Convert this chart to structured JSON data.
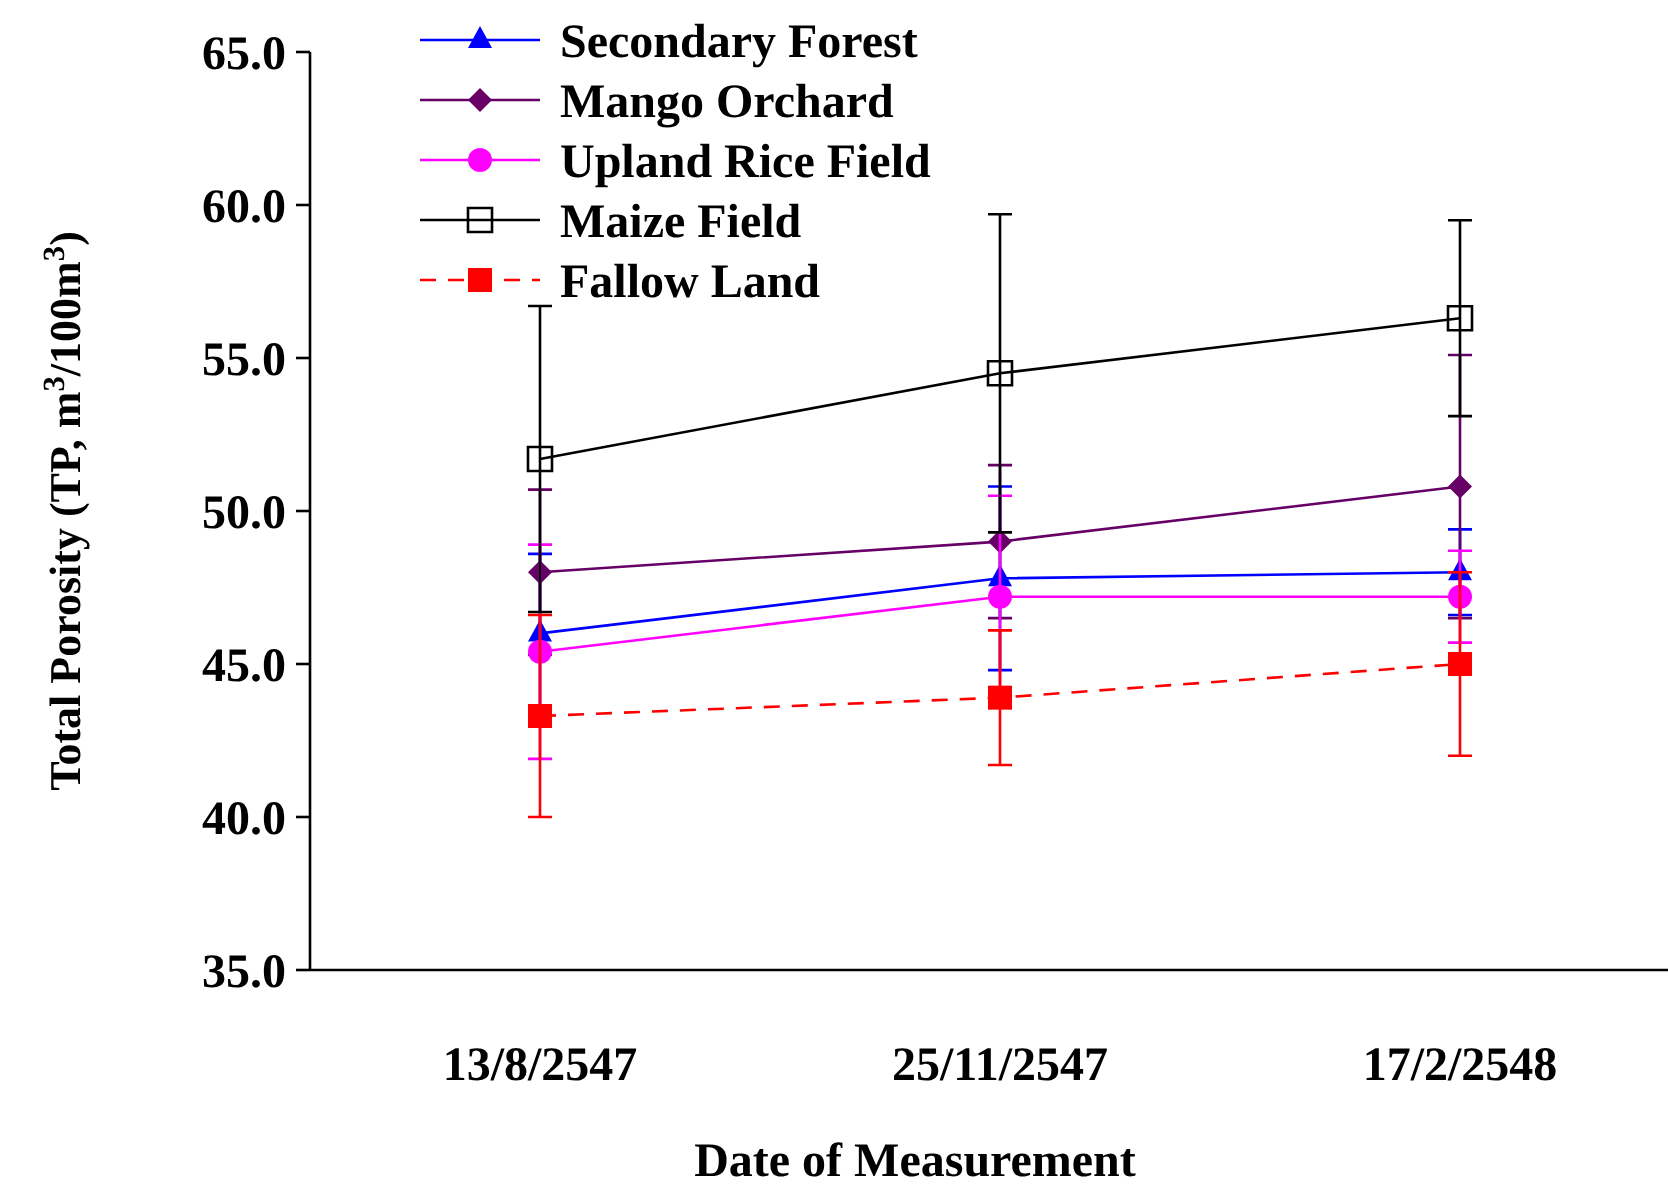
{
  "chart_data": {
    "type": "line",
    "xlabel": "Date of Measurement",
    "ylabel": "Total Porosity (TP, m$^{3}$/100m$^{3}$)",
    "categories": [
      "13/8/2547",
      "25/11/2547",
      "17/2/2548"
    ],
    "ylim": [
      35,
      65
    ],
    "yticks": [
      {
        "value": 35,
        "label": "35.0"
      },
      {
        "value": 40,
        "label": "40.0"
      },
      {
        "value": 45,
        "label": "45.0"
      },
      {
        "value": 50,
        "label": "50.0"
      },
      {
        "value": 55,
        "label": "55.0"
      },
      {
        "value": 60,
        "label": "60.0"
      },
      {
        "value": 65,
        "label": "65.0"
      }
    ],
    "legend": "top left",
    "grid": false,
    "series": [
      {
        "name": "Secondary Forest",
        "color": "#0000ff",
        "marker": "triangle",
        "line_style": "solid",
        "values": [
          46.0,
          47.8,
          48.0
        ],
        "errors": [
          2.6,
          3.0,
          1.4
        ]
      },
      {
        "name": "Mango Orchard",
        "color": "#660066",
        "marker": "diamond",
        "line_style": "solid",
        "values": [
          48.0,
          49.0,
          50.8
        ],
        "errors": [
          2.7,
          2.5,
          4.3
        ]
      },
      {
        "name": "Upland Rice Field",
        "color": "#ff00ff",
        "marker": "circle",
        "line_style": "solid",
        "values": [
          45.4,
          47.2,
          47.2
        ],
        "errors": [
          3.5,
          3.3,
          1.5
        ]
      },
      {
        "name": "Maize Field",
        "color": "#000000",
        "marker": "square",
        "line_style": "solid",
        "values": [
          51.7,
          54.5,
          56.3
        ],
        "errors": [
          5.0,
          5.2,
          3.2
        ]
      },
      {
        "name": "Fallow Land",
        "color": "#ff0000",
        "marker": "square",
        "line_style": "dashed",
        "values": [
          43.3,
          43.9,
          45.0
        ],
        "errors": [
          3.3,
          2.2,
          3.0
        ]
      }
    ]
  }
}
